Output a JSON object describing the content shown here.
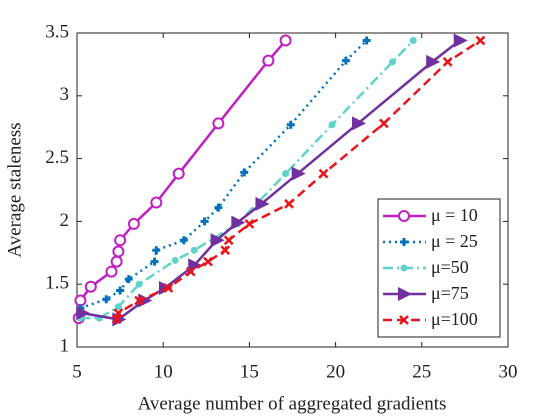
{
  "chart_data": {
    "type": "line",
    "xlabel": "Average number of aggregated gradients",
    "ylabel": "Average staleness",
    "xlim": [
      5,
      30
    ],
    "xticks": [
      5,
      10,
      15,
      20,
      25,
      30
    ],
    "ylim": [
      1,
      3.5
    ],
    "yticks": [
      1,
      1.5,
      2,
      2.5,
      3,
      3.5
    ],
    "legend_position": "lower right",
    "series": [
      {
        "name": "μ = 10",
        "color": "#c020c0",
        "dash": "solid",
        "marker": "circle",
        "x": [
          5.1,
          5.2,
          5.8,
          7.0,
          7.3,
          7.4,
          7.5,
          8.3,
          9.6,
          10.9,
          13.2,
          16.1,
          17.1
        ],
        "values": [
          1.23,
          1.37,
          1.48,
          1.6,
          1.68,
          1.76,
          1.85,
          1.98,
          2.15,
          2.38,
          2.78,
          3.28,
          3.44
        ]
      },
      {
        "name": "μ = 25",
        "color": "#0072bd",
        "dash": "dot",
        "marker": "plus",
        "x": [
          5.2,
          6.7,
          7.5,
          8.0,
          9.5,
          9.6,
          11.2,
          12.4,
          13.2,
          14.7,
          17.4,
          20.6,
          21.8
        ],
        "values": [
          1.31,
          1.38,
          1.45,
          1.54,
          1.68,
          1.77,
          1.85,
          2.0,
          2.11,
          2.39,
          2.77,
          3.28,
          3.44
        ]
      },
      {
        "name": "μ=50",
        "color": "#5fd3c8",
        "dash": "dashdot",
        "marker": "dot",
        "x": [
          5.2,
          6.3,
          7.4,
          8.6,
          10.7,
          11.8,
          14.3,
          17.1,
          19.8,
          23.3,
          24.5
        ],
        "values": [
          1.23,
          1.23,
          1.32,
          1.5,
          1.69,
          1.77,
          1.98,
          2.38,
          2.77,
          3.27,
          3.44
        ]
      },
      {
        "name": "μ=75",
        "color": "#7030a0",
        "dash": "solid",
        "marker": "triangle",
        "x": [
          5.3,
          7.4,
          8.9,
          10.1,
          11.8,
          13.1,
          14.3,
          15.7,
          17.8,
          21.3,
          25.6,
          27.2
        ],
        "values": [
          1.27,
          1.22,
          1.37,
          1.47,
          1.65,
          1.85,
          1.99,
          2.14,
          2.38,
          2.78,
          3.27,
          3.44
        ]
      },
      {
        "name": "μ=100",
        "color": "#e8161b",
        "dash": "dash",
        "marker": "x",
        "x": [
          7.3,
          7.4,
          8.6,
          10.3,
          11.6,
          12.6,
          13.6,
          13.8,
          15.0,
          17.3,
          19.3,
          22.8,
          26.5,
          28.4
        ],
        "values": [
          1.22,
          1.27,
          1.37,
          1.47,
          1.6,
          1.68,
          1.77,
          1.85,
          1.98,
          2.14,
          2.38,
          2.78,
          3.27,
          3.44
        ]
      }
    ]
  }
}
